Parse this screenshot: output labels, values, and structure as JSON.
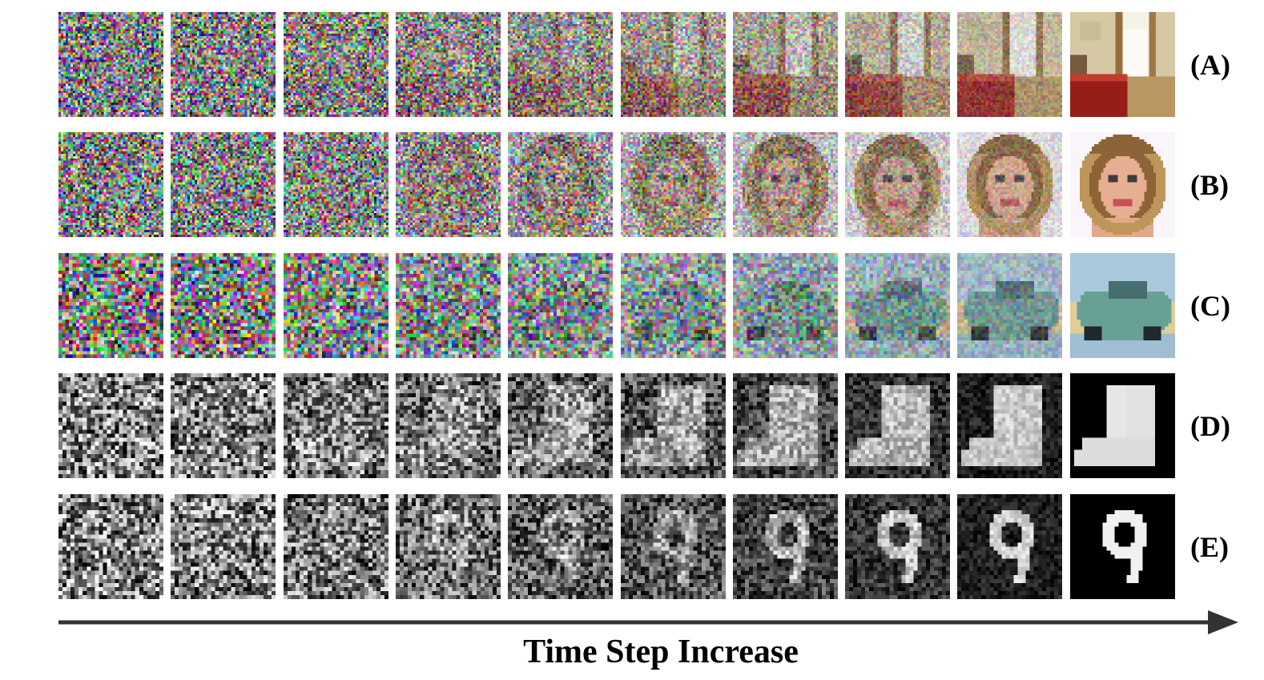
{
  "figure": {
    "caption": "Time Step Increase",
    "rows": [
      {
        "label": "(A)",
        "subject": "bedroom",
        "style": "color"
      },
      {
        "label": "(B)",
        "subject": "face",
        "style": "color"
      },
      {
        "label": "(C)",
        "subject": "car",
        "style": "color"
      },
      {
        "label": "(D)",
        "subject": "boot",
        "style": "grayscale"
      },
      {
        "label": "(E)",
        "subject": "digit-9",
        "style": "grayscale"
      }
    ],
    "steps_per_row": 10
  },
  "colors": {
    "arrow": "#333333",
    "label": "#000000",
    "background": "#ffffff"
  }
}
